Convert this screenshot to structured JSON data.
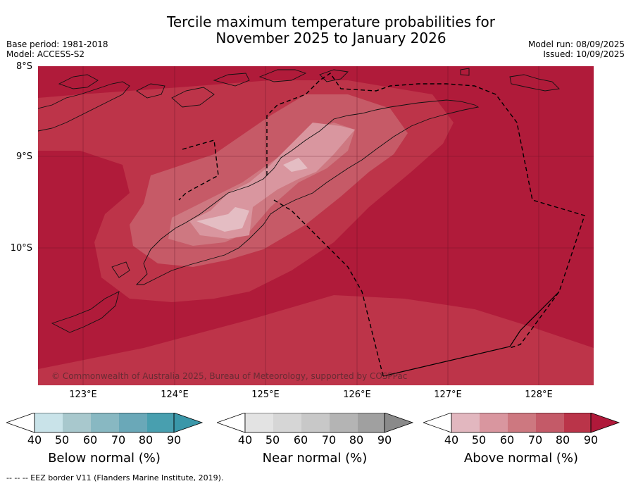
{
  "title_line1": "Tercile maximum temperature probabilities for",
  "title_line2": "November 2025 to January 2026",
  "base_period": "Base period: 1981-2018",
  "model": "Model: ACCESS-S2",
  "model_run": "Model run: 08/09/2025",
  "issued": "Issued: 10/09/2025",
  "lat_labels": [
    "8°S",
    "9°S",
    "10°S"
  ],
  "lon_labels": [
    "123°E",
    "124°E",
    "125°E",
    "126°E",
    "127°E",
    "128°E"
  ],
  "copyright": "© Commonwealth of Australia 2025, Bureau of Meteorology, supported by COSPPac",
  "colorbars": [
    {
      "label": "Below normal (%)",
      "ticks": [
        "40",
        "50",
        "60",
        "70",
        "80",
        "90"
      ],
      "colors": [
        "#c9e3e9",
        "#a8c8cd",
        "#88b8c2",
        "#6aa8b8",
        "#489faf",
        "#3a97a9"
      ]
    },
    {
      "label": "Near normal (%)",
      "ticks": [
        "40",
        "50",
        "60",
        "70",
        "80",
        "90"
      ],
      "colors": [
        "#e3e3e3",
        "#d6d6d6",
        "#c8c8c8",
        "#b4b4b4",
        "#a0a0a0",
        "#8a8a8a"
      ]
    },
    {
      "label": "Above normal (%)",
      "ticks": [
        "40",
        "50",
        "60",
        "70",
        "80",
        "90"
      ],
      "colors": [
        "#e2b7bf",
        "#d9969f",
        "#cd7880",
        "#c45a68",
        "#ba3449",
        "#b0193a"
      ]
    }
  ],
  "footer": "--  --  -- EEZ border V11 (Flanders Marine Institute, 2019)."
}
